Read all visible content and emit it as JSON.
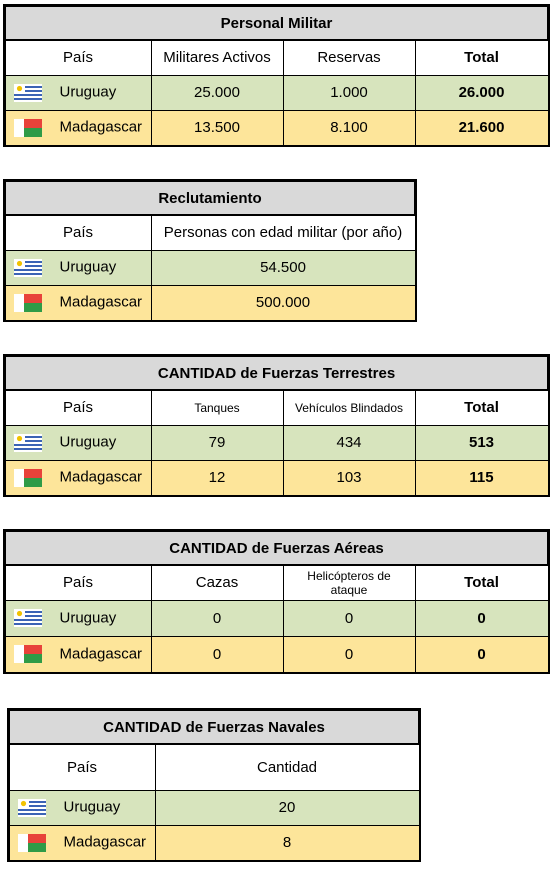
{
  "countries": {
    "uruguay": {
      "name": "Uruguay",
      "flag": "uruguay-flag"
    },
    "madagascar": {
      "name": "Madagascar",
      "flag": "madagascar-flag"
    }
  },
  "colors": {
    "title_bg": "#d9d9d9",
    "uruguay_row": "#d7e4bd",
    "madagascar_row": "#fde59a"
  },
  "personal": {
    "title": "Personal Militar",
    "headers": [
      "País",
      "Militares Activos",
      "Reservas",
      "Total"
    ],
    "uruguay": [
      "25.000",
      "1.000",
      "26.000"
    ],
    "madagascar": [
      "13.500",
      "8.100",
      "21.600"
    ]
  },
  "reclutamiento": {
    "title": "Reclutamiento",
    "headers": [
      "País",
      "Personas con edad militar (por año)"
    ],
    "uruguay": [
      "54.500"
    ],
    "madagascar": [
      "500.000"
    ]
  },
  "terrestres": {
    "title": "CANTIDAD de Fuerzas Terrestres",
    "headers": [
      "País",
      "Tanques",
      "Vehículos Blindados",
      "Total"
    ],
    "uruguay": [
      "79",
      "434",
      "513"
    ],
    "madagascar": [
      "12",
      "103",
      "115"
    ]
  },
  "aereas": {
    "title": "CANTIDAD de Fuerzas Aéreas",
    "headers": [
      "País",
      "Cazas",
      "Helicópteros de ataque",
      "Total"
    ],
    "uruguay": [
      "0",
      "0",
      "0"
    ],
    "madagascar": [
      "0",
      "0",
      "0"
    ]
  },
  "navales": {
    "title": "CANTIDAD de Fuerzas Navales",
    "headers": [
      "País",
      "Cantidad"
    ],
    "uruguay": [
      "20"
    ],
    "madagascar": [
      "8"
    ]
  }
}
